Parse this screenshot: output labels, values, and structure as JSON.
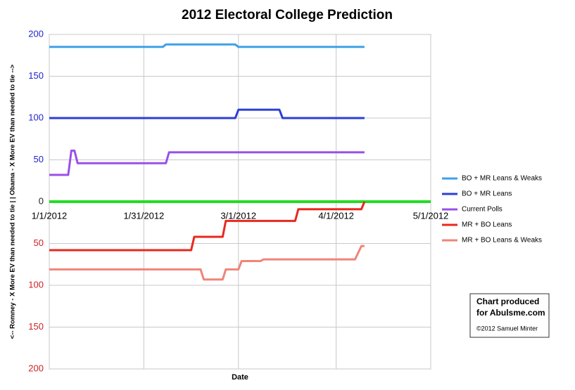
{
  "chart_data": {
    "type": "line",
    "title": "2012 Electoral College Prediction",
    "x_label": "Date",
    "y_label": "<-- Romney - X More EV than needed to tie | | Obama - X More EV than needed to tie -->",
    "xlim": [
      "2012-01-01",
      "2012-05-01"
    ],
    "xticks": [
      {
        "value": "2012-01-01",
        "label": "1/1/2012"
      },
      {
        "value": "2012-01-31",
        "label": "1/31/2012"
      },
      {
        "value": "2012-03-01",
        "label": "3/1/2012"
      },
      {
        "value": "2012-04-01",
        "label": "4/1/2012"
      },
      {
        "value": "2012-05-01",
        "label": "5/1/2012"
      }
    ],
    "ylim": [
      -200,
      200
    ],
    "yticks": [
      {
        "value": -200,
        "label": "200"
      },
      {
        "value": -150,
        "label": "150"
      },
      {
        "value": -100,
        "label": "100"
      },
      {
        "value": -50,
        "label": "50"
      },
      0,
      50,
      100,
      150,
      200
    ],
    "grid": true,
    "legend": "right",
    "series": [
      {
        "name": "BO + MR Leans & Weaks",
        "color": "#3fa0e8",
        "x": [
          "2012-01-01",
          "2012-02-06",
          "2012-02-07",
          "2012-02-29",
          "2012-03-01",
          "2012-04-10"
        ],
        "values": [
          185,
          185,
          188,
          188,
          185,
          185
        ]
      },
      {
        "name": "BO + MR Leans",
        "color": "#2b3ed8",
        "x": [
          "2012-01-01",
          "2012-02-29",
          "2012-03-01",
          "2012-03-14",
          "2012-03-15",
          "2012-04-10"
        ],
        "values": [
          100,
          100,
          110,
          110,
          100,
          100
        ]
      },
      {
        "name": "Current Polls",
        "color": "#9b4fe8",
        "x": [
          "2012-01-01",
          "2012-01-07",
          "2012-01-08",
          "2012-01-09",
          "2012-01-10",
          "2012-02-07",
          "2012-02-08",
          "2012-04-10"
        ],
        "values": [
          32,
          32,
          61,
          61,
          46,
          46,
          59,
          59
        ]
      },
      {
        "name": "MR + BO Leans",
        "color": "#e8281e",
        "x": [
          "2012-01-01",
          "2012-02-15",
          "2012-02-16",
          "2012-02-25",
          "2012-02-26",
          "2012-03-19",
          "2012-03-20",
          "2012-04-09",
          "2012-04-10"
        ],
        "values": [
          -58,
          -58,
          -42,
          -42,
          -23,
          -23,
          -9,
          -9,
          0
        ]
      },
      {
        "name": "MR + BO Leans & Weaks",
        "color": "#f08478",
        "x": [
          "2012-01-01",
          "2012-02-18",
          "2012-02-19",
          "2012-02-25",
          "2012-02-26",
          "2012-03-01",
          "2012-03-02",
          "2012-03-08",
          "2012-03-09",
          "2012-04-07",
          "2012-04-09",
          "2012-04-10"
        ],
        "values": [
          -81,
          -81,
          -93,
          -93,
          -81,
          -81,
          -71,
          -71,
          -69,
          -69,
          -53,
          -53
        ]
      }
    ],
    "annotation": {
      "line1": "Chart produced",
      "line2": "for Abulsme.com",
      "credit": "©2012 Samuel Minter"
    }
  }
}
